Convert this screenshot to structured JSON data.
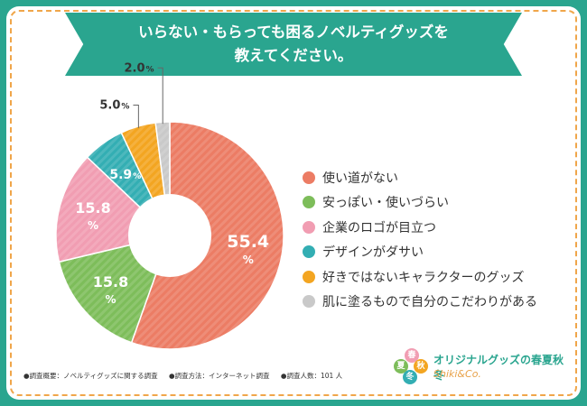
{
  "title": {
    "line1": "いらない・もらっても困るノベルティグッズを",
    "line2": "教えてください。"
  },
  "chart_data": {
    "type": "pie",
    "variant": "donut",
    "slices": [
      {
        "label": "使い道がない",
        "value": 55.4,
        "display": "55.4",
        "color": "#ec7c64"
      },
      {
        "label": "安っぽい・使いづらい",
        "value": 15.8,
        "display": "15.8",
        "color": "#7dbd5a"
      },
      {
        "label": "企業のロゴが目立つ",
        "value": 15.8,
        "display": "15.8",
        "color": "#f19db2"
      },
      {
        "label": "デザインがダサい",
        "value": 5.9,
        "display": "5.9",
        "color": "#33aeb3"
      },
      {
        "label": "好きではないキャラクターのグッズ",
        "value": 5.0,
        "display": "5.0",
        "color": "#f3a521"
      },
      {
        "label": "肌に塗るもので自分のこだわりがある",
        "value": 2.0,
        "display": "2.0",
        "color": "#c9c9c9"
      }
    ],
    "unit": "%"
  },
  "footnotes": [
    "●調査概要：ノベルティグッズに関する調査",
    "●調査方法：インターネット調査",
    "●調査人数：101 人"
  ],
  "brand": {
    "name": "オリジナルグッズの春夏秋冬",
    "sub": "Shiki&Co.",
    "badges": [
      "春",
      "夏",
      "秋",
      "冬"
    ]
  }
}
